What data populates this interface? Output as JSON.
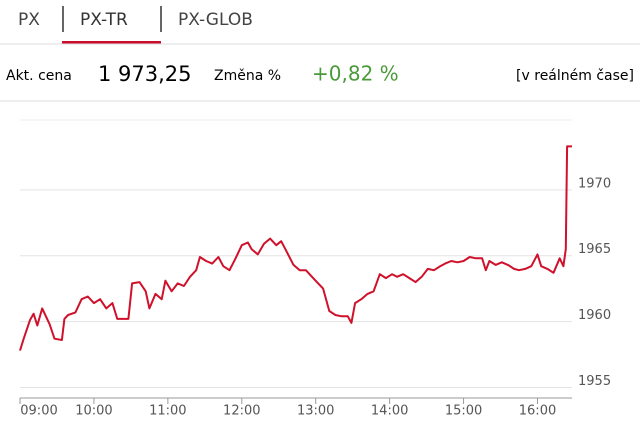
{
  "tabs": [
    "PX",
    "PX-TR",
    "PX-GLOB"
  ],
  "quote": {
    "price_label": "Akt. cena",
    "price": "1 973,25",
    "change_label": "Změna %",
    "change": "+0,82 %",
    "realtime": "[v reálném čase]"
  },
  "chart_data": {
    "type": "line",
    "x": [
      "09:00",
      "09:03",
      "09:08",
      "09:11",
      "09:14",
      "09:18",
      "09:21",
      "09:24",
      "09:28",
      "09:34",
      "09:36",
      "09:39",
      "09:45",
      "09:50",
      "09:55",
      "10:00",
      "10:05",
      "10:10",
      "10:15",
      "10:19",
      "10:28",
      "10:31",
      "10:37",
      "10:42",
      "10:45",
      "10:50",
      "10:55",
      "10:58",
      "11:03",
      "11:08",
      "11:13",
      "11:18",
      "11:23",
      "11:26",
      "11:31",
      "11:36",
      "11:41",
      "11:45",
      "11:50",
      "11:55",
      "12:00",
      "12:05",
      "12:08",
      "12:13",
      "12:18",
      "12:23",
      "12:28",
      "12:32",
      "12:37",
      "12:42",
      "12:47",
      "12:52",
      "12:57",
      "13:02",
      "13:06",
      "13:11",
      "13:16",
      "13:21",
      "13:26",
      "13:29",
      "13:32",
      "13:37",
      "13:42",
      "13:47",
      "13:52",
      "13:57",
      "14:02",
      "14:06",
      "14:11",
      "14:16",
      "14:21",
      "14:26",
      "14:31",
      "14:36",
      "14:41",
      "14:45",
      "14:50",
      "14:55",
      "15:00",
      "15:05",
      "15:10",
      "15:15",
      "15:18",
      "15:21",
      "15:26",
      "15:31",
      "15:36",
      "15:41",
      "15:45",
      "15:50",
      "15:55",
      "16:00",
      "16:03",
      "16:08",
      "16:13",
      "16:18",
      "16:21",
      "16:23",
      "16:24",
      "16:28"
    ],
    "series": [
      {
        "name": "PX-TR",
        "color": "#d0112b",
        "values": [
          1957.8,
          1958.7,
          1960.1,
          1960.6,
          1959.7,
          1961.0,
          1960.4,
          1959.8,
          1958.7,
          1958.6,
          1960.2,
          1960.5,
          1960.7,
          1961.7,
          1961.9,
          1961.4,
          1961.7,
          1961.0,
          1961.4,
          1960.2,
          1960.2,
          1962.9,
          1963.0,
          1962.3,
          1961.0,
          1962.1,
          1961.7,
          1963.1,
          1962.3,
          1962.9,
          1962.7,
          1963.4,
          1963.9,
          1964.9,
          1964.6,
          1964.4,
          1964.9,
          1964.2,
          1963.9,
          1964.8,
          1965.8,
          1966.0,
          1965.5,
          1965.1,
          1965.9,
          1966.3,
          1965.8,
          1966.1,
          1965.2,
          1964.3,
          1963.9,
          1963.9,
          1963.4,
          1962.9,
          1962.5,
          1960.8,
          1960.5,
          1960.4,
          1960.4,
          1959.9,
          1961.4,
          1961.7,
          1962.1,
          1962.3,
          1963.6,
          1963.3,
          1963.6,
          1963.4,
          1963.6,
          1963.3,
          1963.0,
          1963.4,
          1964.0,
          1963.9,
          1964.2,
          1964.4,
          1964.6,
          1964.5,
          1964.6,
          1964.9,
          1964.8,
          1964.8,
          1963.9,
          1964.6,
          1964.3,
          1964.5,
          1964.3,
          1964.0,
          1963.9,
          1964.0,
          1964.2,
          1965.1,
          1964.2,
          1964.0,
          1963.7,
          1964.8,
          1964.2,
          1965.5,
          1973.3,
          1973.3
        ]
      }
    ],
    "xlim": [
      "09:00",
      "16:28"
    ],
    "xticks": [
      "09:00",
      "10:00",
      "11:00",
      "12:00",
      "13:00",
      "14:00",
      "15:00",
      "16:00"
    ],
    "ylim": [
      1954.2,
      1975.3
    ],
    "yticks": [
      1955,
      1960,
      1965,
      1970
    ],
    "grid": true
  }
}
